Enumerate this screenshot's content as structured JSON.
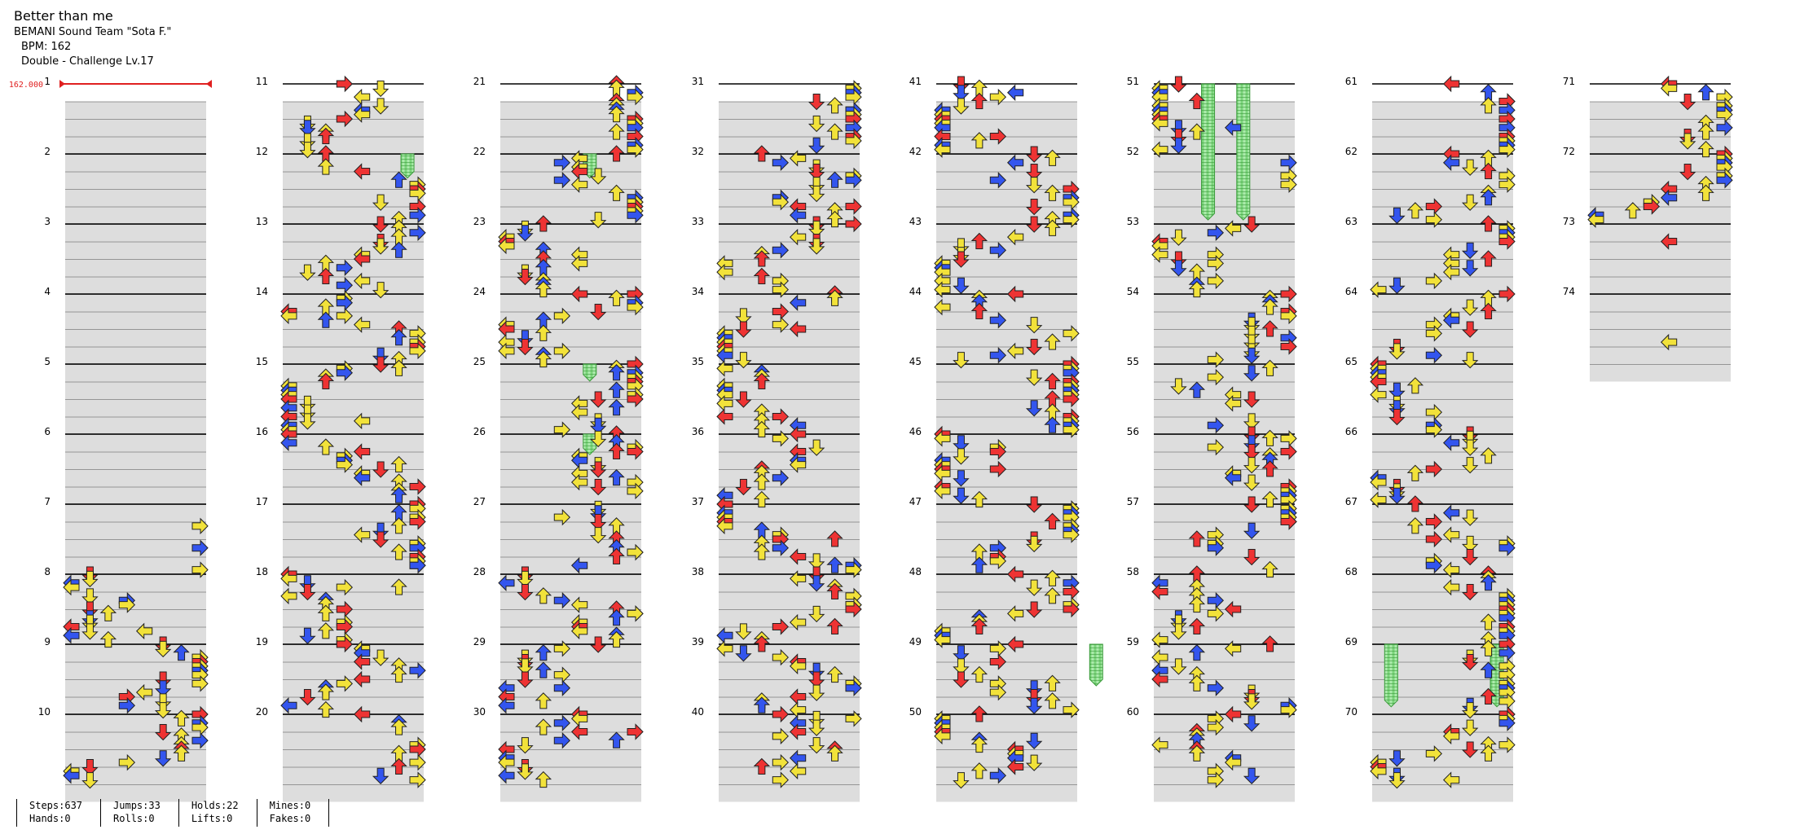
{
  "song": {
    "title": "Better than me",
    "artist": "BEMANI Sound Team \"Sota F.\"",
    "bpm": "BPM: 162",
    "difficulty": "Double - Challenge Lv.17"
  },
  "bpm_marker": "162.000",
  "measures": {
    "count": 74,
    "numbers": [
      "1",
      "2",
      "3",
      "4",
      "5",
      "6",
      "7",
      "8",
      "9",
      "10",
      "11",
      "12",
      "13",
      "14",
      "15",
      "16",
      "17",
      "18",
      "19",
      "20",
      "21",
      "22",
      "23",
      "24",
      "25",
      "26",
      "27",
      "28",
      "29",
      "30",
      "31",
      "32",
      "33",
      "34",
      "35",
      "36",
      "37",
      "38",
      "39",
      "40",
      "41",
      "42",
      "43",
      "44",
      "45",
      "46",
      "47",
      "48",
      "49",
      "50",
      "51",
      "52",
      "53",
      "54",
      "55",
      "56",
      "57",
      "58",
      "59",
      "60",
      "61",
      "62",
      "63",
      "64",
      "65",
      "66",
      "67",
      "68",
      "69",
      "70",
      "71",
      "72",
      "73",
      "74"
    ]
  },
  "stats": {
    "steps": "Steps:637",
    "hands": "Hands:0",
    "jumps": "Jumps:33",
    "rolls": "Rolls:0",
    "holds": "Holds:22",
    "lifts": "Lifts:0",
    "mines": "Mines:0",
    "fakes": "Fakes:0"
  },
  "colors": {
    "quarter_note": "#ee3333",
    "eighth_note": "#3355ee",
    "sixteenth_note": "#f2e23a",
    "hold": "#8fe08f",
    "band": "#dddddd",
    "bpm_marker": "#e02020"
  },
  "icons": {
    "left": "arrow-left-icon",
    "down": "arrow-down-icon",
    "up": "arrow-up-icon",
    "right": "arrow-right-icon"
  }
}
